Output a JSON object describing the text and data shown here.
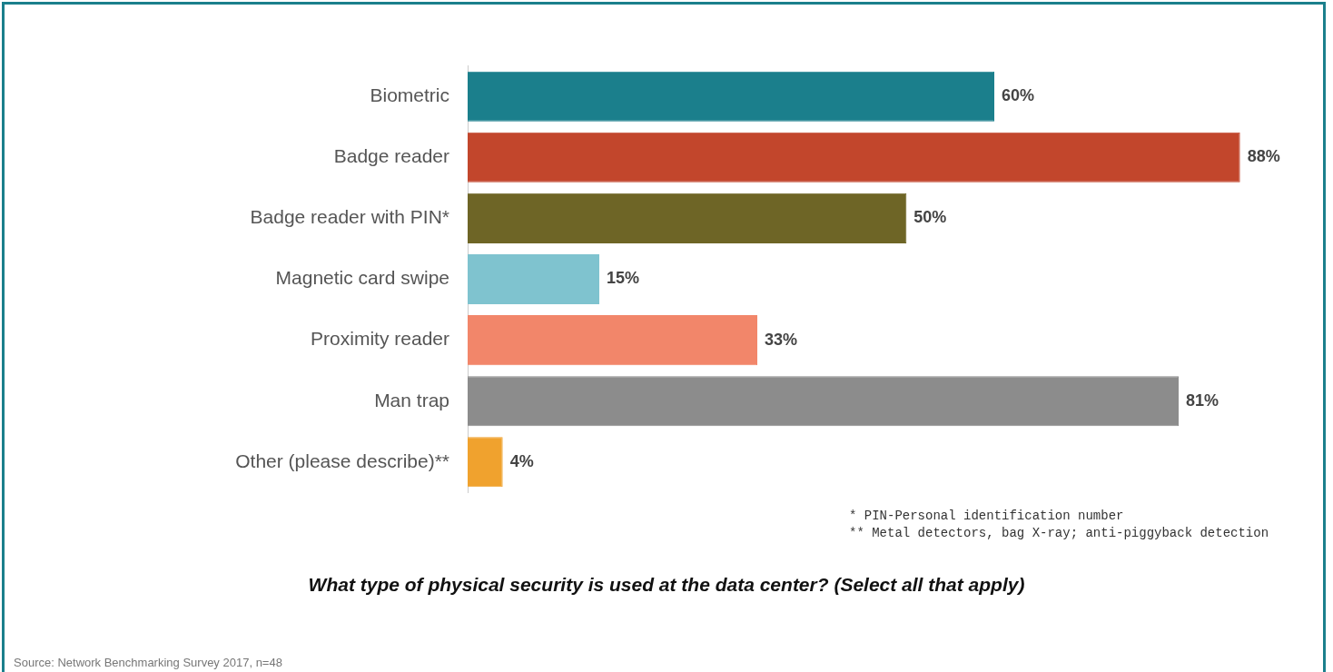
{
  "chart_data": {
    "type": "bar",
    "orientation": "horizontal",
    "title": "What type of physical security is used at the data center? (Select all that apply)",
    "categories": [
      "Biometric",
      "Badge reader",
      "Badge reader with PIN*",
      "Magnetic card swipe",
      "Proximity reader",
      "Man trap",
      "Other (please describe)**"
    ],
    "values": [
      60,
      88,
      50,
      15,
      33,
      81,
      4
    ],
    "colors": [
      "#1b7f8c",
      "#c2462c",
      "#6e6526",
      "#7fc3cf",
      "#f2866a",
      "#8c8c8c",
      "#f0a22e"
    ],
    "value_labels": [
      "60%",
      "88%",
      "50%",
      "15%",
      "33%",
      "81%",
      "4%"
    ],
    "annotations": [
      "* PIN-Personal identification number",
      "** Metal detectors, bag X-ray; anti-piggyback detection",
      "Source: Network Benchmarking Survey 2017, n=48"
    ]
  }
}
